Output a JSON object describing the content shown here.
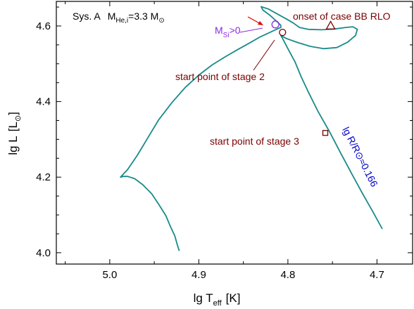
{
  "chart_data": {
    "type": "line",
    "title": "",
    "xlabel": {
      "main": "lg T",
      "sub": "eff",
      "unit": "[K]"
    },
    "ylabel": {
      "main": "lg L",
      "unit_open": "[L",
      "unit_sub": "⊙",
      "unit_close": "]"
    },
    "x_reversed": true,
    "xlim": [
      5.06,
      4.66
    ],
    "ylim": [
      3.97,
      4.665
    ],
    "x_ticks": [
      5.0,
      4.9,
      4.8,
      4.7
    ],
    "x_tick_labels": [
      "5.0",
      "4.9",
      "4.8",
      "4.7"
    ],
    "y_ticks": [
      4.0,
      4.2,
      4.4,
      4.6
    ],
    "y_tick_labels": [
      "4.0",
      "4.2",
      "4.4",
      "4.6"
    ],
    "system_label": {
      "text": "Sys. A",
      "mass_main": "M",
      "mass_sub": "He,i",
      "mass_value": "=3.3 M",
      "mass_unit_sub": "⊙"
    },
    "colors": {
      "track": "#1a8a8a",
      "annotation": "#7a0000",
      "msi": "#8a2be2",
      "radius": "#0000cc",
      "arrow": "#e00000",
      "axis": "#000000"
    },
    "series": [
      {
        "color": "#1a8a8a",
        "x": [
          4.922,
          4.924,
          4.927,
          4.932,
          4.937,
          4.945,
          4.953,
          4.963,
          4.972,
          4.98,
          4.985,
          4.988,
          4.98,
          4.969,
          4.957,
          4.945,
          4.93,
          4.915,
          4.9,
          4.885,
          4.87,
          4.856,
          4.843,
          4.832,
          4.822,
          4.814,
          4.808,
          4.808,
          4.813,
          4.82,
          4.828,
          4.83,
          4.822,
          4.812,
          4.802,
          4.794,
          4.787,
          4.777,
          4.762,
          4.748,
          4.735,
          4.727,
          4.722,
          4.724,
          4.733,
          4.745,
          4.76,
          4.775,
          4.79,
          4.802,
          4.808,
          4.806,
          4.8,
          4.792,
          4.785,
          4.777,
          4.766,
          4.753,
          4.741,
          4.729,
          4.717,
          4.705,
          4.694
        ],
        "y": [
          4.005,
          4.02,
          4.045,
          4.07,
          4.098,
          4.128,
          4.156,
          4.18,
          4.196,
          4.202,
          4.202,
          4.2,
          4.22,
          4.258,
          4.305,
          4.352,
          4.398,
          4.438,
          4.47,
          4.497,
          4.519,
          4.538,
          4.555,
          4.57,
          4.581,
          4.59,
          4.596,
          4.602,
          4.613,
          4.628,
          4.642,
          4.651,
          4.645,
          4.632,
          4.619,
          4.608,
          4.596,
          4.591,
          4.59,
          4.592,
          4.596,
          4.598,
          4.591,
          4.575,
          4.557,
          4.543,
          4.54,
          4.546,
          4.557,
          4.567,
          4.575,
          4.567,
          4.54,
          4.505,
          4.465,
          4.425,
          4.373,
          4.319,
          4.265,
          4.212,
          4.16,
          4.11,
          4.063
        ]
      }
    ],
    "markers": [
      {
        "shape": "circle",
        "color": "#8a2be2",
        "x": 4.814,
        "y": 4.604,
        "size": 5
      },
      {
        "shape": "circle",
        "color": "#7a0000",
        "x": 4.806,
        "y": 4.583,
        "size": 4.5
      },
      {
        "shape": "triangle",
        "color": "#7a0000",
        "x": 4.752,
        "y": 4.601,
        "size": 6
      },
      {
        "shape": "square",
        "color": "#7a0000",
        "x": 4.758,
        "y": 4.317,
        "size": 7
      }
    ],
    "annotations": {
      "onset": "onset of case BB RLO",
      "stage2": "start point of stage 2",
      "stage3": "start point of stage 3",
      "msi_main": "M",
      "msi_sub": "Si",
      "msi_rest": ">0",
      "radius": "lg R/R⊙≈0.166"
    }
  }
}
